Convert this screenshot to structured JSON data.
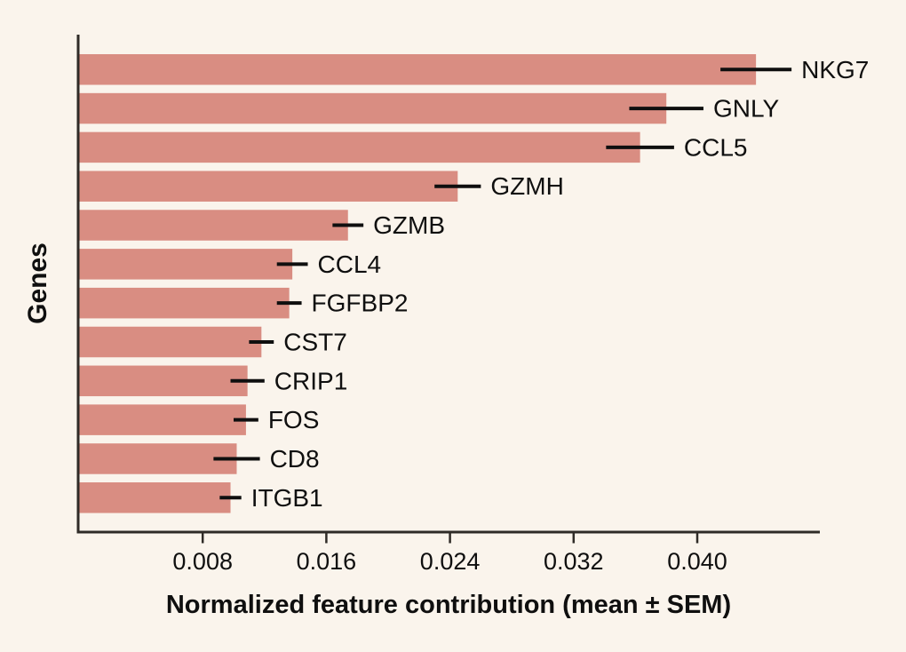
{
  "colors": {
    "background": "#faf4ec",
    "bar": "#d98d82",
    "axis": "#2f2b27",
    "error_bar": "#0f0f0f",
    "text": "#0f0f0f"
  },
  "chart_data": {
    "type": "bar",
    "orientation": "horizontal",
    "title": "",
    "xlabel": "Normalized feature contribution (mean ± SEM)",
    "ylabel": "Genes",
    "categories": [
      "NKG7",
      "GNLY",
      "CCL5",
      "GZMH",
      "GZMB",
      "CCL4",
      "FGFBP2",
      "CST7",
      "CRIP1",
      "FOS",
      "CD8",
      "ITGB1"
    ],
    "series": [
      {
        "name": "mean",
        "values": [
          0.0438,
          0.038,
          0.0363,
          0.0245,
          0.0174,
          0.0138,
          0.0136,
          0.0118,
          0.0109,
          0.0108,
          0.0102,
          0.0098
        ]
      },
      {
        "name": "sem",
        "values": [
          0.0023,
          0.0024,
          0.0022,
          0.0015,
          0.001,
          0.001,
          0.0008,
          0.0008,
          0.0011,
          0.0008,
          0.0015,
          0.0007
        ]
      }
    ],
    "x_tick_values": [
      0.008,
      0.016,
      0.024,
      0.032,
      0.04
    ],
    "x_tick_labels": [
      "0.008",
      "0.016",
      "0.024",
      "0.032",
      "0.040"
    ],
    "xlim": [
      0,
      0.048
    ],
    "grid": false,
    "sort_order": "descending",
    "error_bars": "horizontal mean ± SEM, no caps",
    "bar_labels_position": "right of error bar"
  }
}
